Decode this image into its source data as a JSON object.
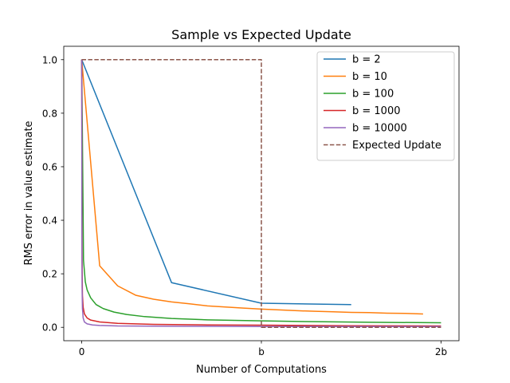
{
  "chart_data": {
    "type": "line",
    "title": "Sample vs Expected Update",
    "xlabel": "Number of Computations",
    "ylabel": "RMS error in value estimate",
    "xlim": [
      -0.1,
      2.1
    ],
    "ylim": [
      -0.05,
      1.05
    ],
    "x_ticks": [
      {
        "value": 0,
        "label": "0"
      },
      {
        "value": 1,
        "label": "b"
      },
      {
        "value": 2,
        "label": "2b"
      }
    ],
    "y_ticks": [
      {
        "value": 0.0,
        "label": "0.0"
      },
      {
        "value": 0.2,
        "label": "0.2"
      },
      {
        "value": 0.4,
        "label": "0.4"
      },
      {
        "value": 0.6,
        "label": "0.6"
      },
      {
        "value": 0.8,
        "label": "0.8"
      },
      {
        "value": 1.0,
        "label": "1.0"
      }
    ],
    "grid": false,
    "legend_position": "top-right",
    "series": [
      {
        "name": "b = 2",
        "color": "#1f77b4",
        "style": "solid",
        "x": [
          0,
          0.5,
          1.0,
          1.5
        ],
        "y": [
          1.0,
          0.167,
          0.09,
          0.085
        ]
      },
      {
        "name": "b = 10",
        "color": "#ff7f0e",
        "style": "solid",
        "x": [
          0,
          0.1,
          0.2,
          0.3,
          0.4,
          0.5,
          0.6,
          0.7,
          0.8,
          0.9,
          1.0,
          1.1,
          1.2,
          1.3,
          1.4,
          1.5,
          1.6,
          1.7,
          1.8,
          1.9
        ],
        "y": [
          1.0,
          0.23,
          0.155,
          0.12,
          0.105,
          0.095,
          0.088,
          0.08,
          0.076,
          0.072,
          0.068,
          0.065,
          0.062,
          0.06,
          0.058,
          0.056,
          0.055,
          0.053,
          0.052,
          0.05
        ]
      },
      {
        "name": "b = 100",
        "color": "#2ca02c",
        "style": "solid",
        "x": [
          0,
          0.01,
          0.02,
          0.03,
          0.05,
          0.08,
          0.12,
          0.18,
          0.25,
          0.35,
          0.5,
          0.7,
          1.0,
          1.3,
          1.6,
          2.0
        ],
        "y": [
          1.0,
          0.25,
          0.17,
          0.14,
          0.11,
          0.085,
          0.07,
          0.057,
          0.048,
          0.04,
          0.033,
          0.028,
          0.024,
          0.021,
          0.019,
          0.017
        ]
      },
      {
        "name": "b = 1000",
        "color": "#d62728",
        "style": "solid",
        "x": [
          0,
          0.002,
          0.004,
          0.008,
          0.015,
          0.03,
          0.05,
          0.1,
          0.2,
          0.4,
          0.7,
          1.0,
          1.5,
          2.0
        ],
        "y": [
          1.0,
          0.25,
          0.12,
          0.075,
          0.05,
          0.035,
          0.027,
          0.02,
          0.015,
          0.011,
          0.009,
          0.008,
          0.006,
          0.005
        ]
      },
      {
        "name": "b = 10000",
        "color": "#9467bd",
        "style": "solid",
        "x": [
          0,
          0.001,
          0.002,
          0.004,
          0.008,
          0.015,
          0.03,
          0.06,
          0.1,
          0.2,
          0.5,
          1.0,
          1.5,
          2.0
        ],
        "y": [
          1.0,
          0.35,
          0.15,
          0.07,
          0.035,
          0.02,
          0.013,
          0.009,
          0.007,
          0.005,
          0.004,
          0.003,
          0.003,
          0.003
        ]
      },
      {
        "name": "Expected Update",
        "color": "#8c564b",
        "style": "dashed",
        "x": [
          0,
          1.0,
          1.0,
          2.0
        ],
        "y": [
          1.0,
          1.0,
          0.0,
          0.0
        ]
      }
    ]
  }
}
